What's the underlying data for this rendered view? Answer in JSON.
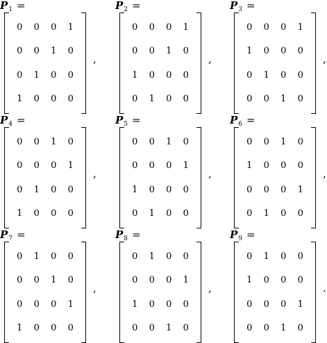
{
  "matrices": [
    {
      "symbol": "P",
      "subscript": "1",
      "equals": "=",
      "separator": ",",
      "rows": [
        [
          "0",
          "0",
          "0",
          "1"
        ],
        [
          "0",
          "0",
          "1",
          "0"
        ],
        [
          "0",
          "1",
          "0",
          "0"
        ],
        [
          "1",
          "0",
          "0",
          "0"
        ]
      ]
    },
    {
      "symbol": "P",
      "subscript": "2",
      "equals": "=",
      "separator": ",",
      "rows": [
        [
          "0",
          "0",
          "0",
          "1"
        ],
        [
          "0",
          "0",
          "1",
          "0"
        ],
        [
          "1",
          "0",
          "0",
          "0"
        ],
        [
          "0",
          "1",
          "0",
          "0"
        ]
      ]
    },
    {
      "symbol": "P",
      "subscript": "3",
      "equals": "=",
      "separator": ",",
      "rows": [
        [
          "0",
          "0",
          "0",
          "1"
        ],
        [
          "1",
          "0",
          "0",
          "0"
        ],
        [
          "0",
          "1",
          "0",
          "0"
        ],
        [
          "0",
          "0",
          "1",
          "0"
        ]
      ]
    },
    {
      "symbol": "P",
      "subscript": "4",
      "equals": "=",
      "separator": ",",
      "rows": [
        [
          "0",
          "0",
          "1",
          "0"
        ],
        [
          "0",
          "0",
          "0",
          "1"
        ],
        [
          "0",
          "1",
          "0",
          "0"
        ],
        [
          "1",
          "0",
          "0",
          "0"
        ]
      ]
    },
    {
      "symbol": "P",
      "subscript": "5",
      "equals": "=",
      "separator": ",",
      "rows": [
        [
          "0",
          "0",
          "1",
          "0"
        ],
        [
          "0",
          "0",
          "0",
          "1"
        ],
        [
          "1",
          "0",
          "0",
          "0"
        ],
        [
          "0",
          "1",
          "0",
          "0"
        ]
      ]
    },
    {
      "symbol": "P",
      "subscript": "6",
      "equals": "=",
      "separator": ",",
      "rows": [
        [
          "0",
          "0",
          "1",
          "0"
        ],
        [
          "1",
          "0",
          "0",
          "0"
        ],
        [
          "0",
          "0",
          "0",
          "1"
        ],
        [
          "0",
          "1",
          "0",
          "0"
        ]
      ]
    },
    {
      "symbol": "P",
      "subscript": "7",
      "equals": "=",
      "separator": ",",
      "rows": [
        [
          "0",
          "1",
          "0",
          "0"
        ],
        [
          "0",
          "0",
          "1",
          "0"
        ],
        [
          "0",
          "0",
          "0",
          "1"
        ],
        [
          "1",
          "0",
          "0",
          "0"
        ]
      ]
    },
    {
      "symbol": "P",
      "subscript": "8",
      "equals": "=",
      "separator": ",",
      "rows": [
        [
          "0",
          "1",
          "0",
          "0"
        ],
        [
          "0",
          "0",
          "0",
          "1"
        ],
        [
          "1",
          "0",
          "0",
          "0"
        ],
        [
          "0",
          "0",
          "1",
          "0"
        ]
      ]
    },
    {
      "symbol": "P",
      "subscript": "9",
      "equals": "=",
      "separator": ".",
      "rows": [
        [
          "0",
          "1",
          "0",
          "0"
        ],
        [
          "1",
          "0",
          "0",
          "0"
        ],
        [
          "0",
          "0",
          "0",
          "1"
        ],
        [
          "0",
          "0",
          "1",
          "0"
        ]
      ]
    }
  ]
}
